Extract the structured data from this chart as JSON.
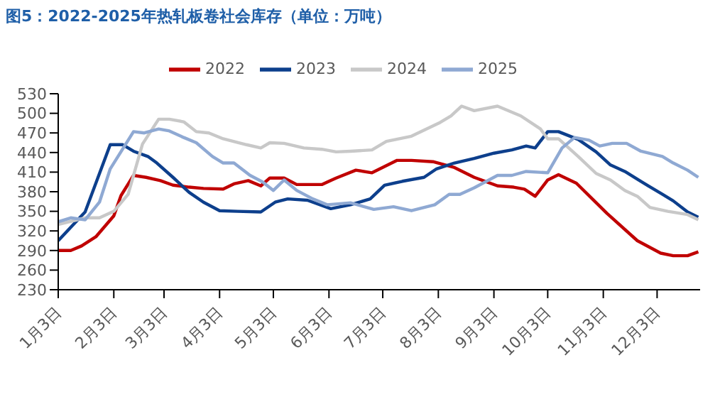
{
  "chart_data": {
    "type": "line",
    "title": "图5：2022-2025年热轧板卷社会库存（单位：万吨）",
    "xlim": [
      "--01-03",
      "--12-27"
    ],
    "xticks": [
      {
        "value": "--01-03",
        "label": "1月3日"
      },
      {
        "value": "--02-03",
        "label": "2月3日"
      },
      {
        "value": "--03-03",
        "label": "3月3日"
      },
      {
        "value": "--04-03",
        "label": "4月3日"
      },
      {
        "value": "--05-03",
        "label": "5月3日"
      },
      {
        "value": "--06-03",
        "label": "6月3日"
      },
      {
        "value": "--07-03",
        "label": "7月3日"
      },
      {
        "value": "--08-03",
        "label": "8月3日"
      },
      {
        "value": "--09-03",
        "label": "9月3日"
      },
      {
        "value": "--10-03",
        "label": "10月3日"
      },
      {
        "value": "--11-03",
        "label": "11月3日"
      },
      {
        "value": "--12-03",
        "label": "12月3日"
      }
    ],
    "ylim": [
      230,
      530
    ],
    "yticks": [
      230,
      260,
      290,
      320,
      350,
      380,
      410,
      440,
      470,
      500,
      530
    ],
    "legend": "top",
    "marker": "none",
    "line_style": "solid",
    "series": [
      {
        "name": "2022",
        "color": "#c00000",
        "x": [
          "--01-03",
          "--01-10",
          "--01-16",
          "--01-24",
          "--02-03",
          "--02-07",
          "--02-14",
          "--02-21",
          "--03-01",
          "--03-08",
          "--03-17",
          "--03-25",
          "--04-05",
          "--04-11",
          "--04-19",
          "--04-26",
          "--05-01",
          "--05-09",
          "--05-16",
          "--05-30",
          "--06-07",
          "--06-18",
          "--06-27",
          "--07-11",
          "--07-19",
          "--07-31",
          "--08-12",
          "--08-23",
          "--09-05",
          "--09-14",
          "--09-20",
          "--09-26",
          "--10-03",
          "--10-09",
          "--10-19",
          "--11-05",
          "--11-22",
          "--12-05",
          "--12-12",
          "--12-20",
          "--12-26"
        ],
        "values": [
          290,
          290,
          297,
          311,
          343,
          374,
          405,
          402,
          397,
          390,
          387,
          385,
          384,
          392,
          397,
          389,
          401,
          401,
          391,
          391,
          401,
          413,
          409,
          428,
          428,
          426,
          417,
          402,
          389,
          387,
          384,
          373,
          398,
          406,
          393,
          347,
          305,
          286,
          282,
          282,
          288
        ]
      },
      {
        "name": "2023",
        "color": "#0d3f8c",
        "x": [
          "--01-03",
          "--01-18",
          "--02-01",
          "--02-08",
          "--02-14",
          "--02-22",
          "--02-27",
          "--03-08",
          "--03-17",
          "--03-25",
          "--04-03",
          "--04-13",
          "--04-26",
          "--05-04",
          "--05-11",
          "--05-22",
          "--06-04",
          "--06-15",
          "--06-26",
          "--07-04",
          "--07-14",
          "--07-26",
          "--08-02",
          "--08-12",
          "--08-23",
          "--09-03",
          "--09-13",
          "--09-21",
          "--09-26",
          "--10-03",
          "--10-09",
          "--10-20",
          "--10-30",
          "--11-07",
          "--11-15",
          "--11-28",
          "--12-06",
          "--12-12",
          "--12-20",
          "--12-26"
        ],
        "values": [
          305,
          349,
          452,
          452,
          442,
          434,
          424,
          402,
          379,
          364,
          351,
          350,
          349,
          364,
          369,
          367,
          354,
          360,
          369,
          390,
          396,
          402,
          415,
          424,
          431,
          439,
          444,
          450,
          447,
          472,
          472,
          460,
          441,
          421,
          411,
          389,
          376,
          366,
          349,
          341
        ]
      },
      {
        "name": "2024",
        "color": "#c8c8c8",
        "x": [
          "--01-03",
          "--01-18",
          "--01-26",
          "--02-03",
          "--02-11",
          "--02-19",
          "--02-28",
          "--03-06",
          "--03-14",
          "--03-21",
          "--03-28",
          "--04-05",
          "--04-18",
          "--04-26",
          "--05-01",
          "--05-09",
          "--05-20",
          "--05-30",
          "--06-07",
          "--06-15",
          "--06-27",
          "--07-05",
          "--07-19",
          "--08-04",
          "--08-10",
          "--08-16",
          "--08-23",
          "--09-05",
          "--09-18",
          "--09-29",
          "--10-03",
          "--10-09",
          "--10-20",
          "--10-30",
          "--11-07",
          "--11-15",
          "--11-22",
          "--11-29",
          "--12-09",
          "--12-20",
          "--12-26"
        ],
        "values": [
          330,
          340,
          340,
          350,
          376,
          453,
          491,
          491,
          487,
          472,
          470,
          461,
          452,
          447,
          455,
          454,
          447,
          445,
          441,
          442,
          444,
          457,
          465,
          486,
          496,
          511,
          504,
          511,
          496,
          476,
          461,
          461,
          434,
          408,
          398,
          382,
          373,
          356,
          350,
          345,
          337
        ]
      },
      {
        "name": "2025",
        "color": "#8fa9d3",
        "x": [
          "--01-03",
          "--01-10",
          "--01-18",
          "--01-26",
          "--02-01",
          "--02-14",
          "--02-20",
          "--02-28",
          "--03-06",
          "--03-14",
          "--03-21",
          "--03-30",
          "--04-05",
          "--04-11",
          "--04-20",
          "--04-27",
          "--05-03",
          "--05-09",
          "--05-16",
          "--05-25",
          "--06-02",
          "--06-15",
          "--06-28",
          "--07-09",
          "--07-19",
          "--08-01",
          "--08-09",
          "--08-15",
          "--08-23",
          "--09-05",
          "--09-13",
          "--09-21",
          "--10-03",
          "--10-11",
          "--10-18",
          "--10-26",
          "--11-01",
          "--11-08",
          "--11-16",
          "--11-24",
          "--12-06",
          "--12-12",
          "--12-20",
          "--12-26"
        ],
        "values": [
          334,
          340,
          337,
          364,
          415,
          472,
          470,
          476,
          473,
          463,
          455,
          434,
          424,
          424,
          405,
          395,
          382,
          398,
          382,
          369,
          360,
          363,
          353,
          357,
          351,
          360,
          376,
          376,
          386,
          405,
          405,
          411,
          409,
          447,
          463,
          459,
          450,
          454,
          454,
          442,
          434,
          424,
          413,
          402
        ]
      }
    ]
  }
}
